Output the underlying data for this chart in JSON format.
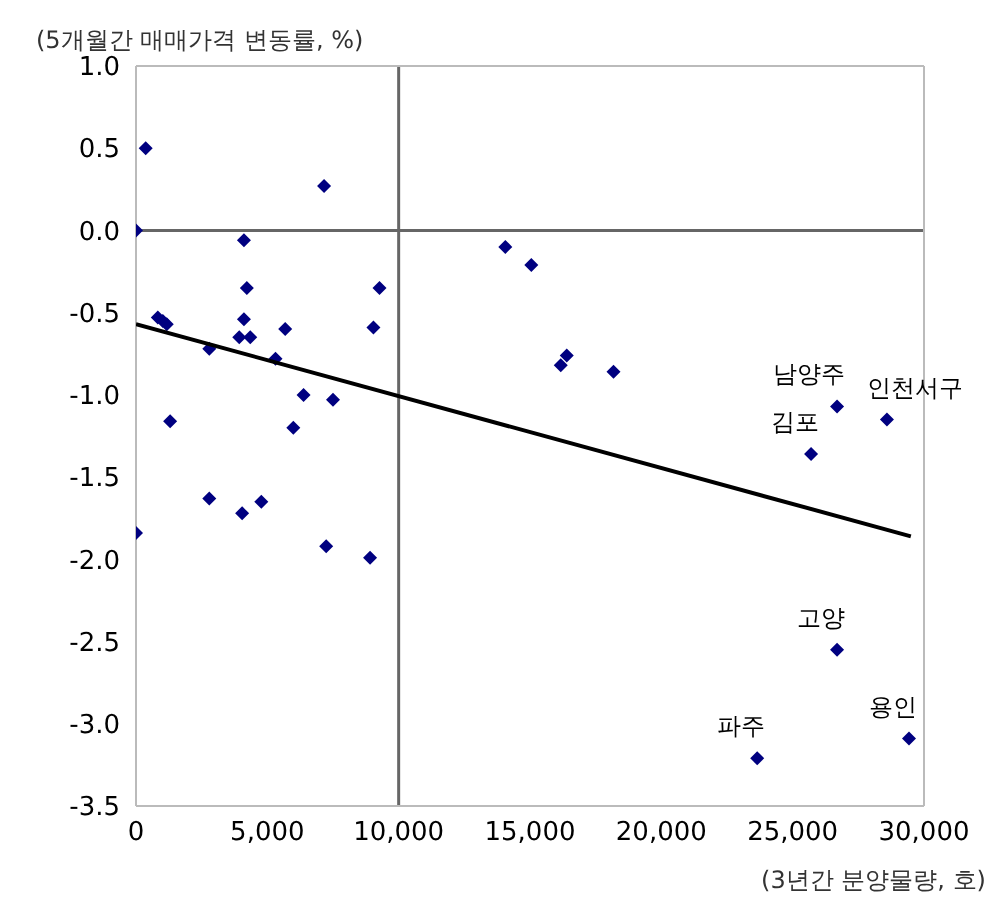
{
  "chart_data": {
    "type": "scatter",
    "ylabel": "(5개월간 매매가격 변동률, %)",
    "xlabel": "(3년간 분양물량, 호)",
    "xlim": [
      0,
      30000
    ],
    "ylim": [
      -3.5,
      1.0
    ],
    "xticks": [
      {
        "value": 0,
        "label": "0"
      },
      {
        "value": 5000,
        "label": "5,000"
      },
      {
        "value": 10000,
        "label": "10,000"
      },
      {
        "value": 15000,
        "label": "15,000"
      },
      {
        "value": 20000,
        "label": "20,000"
      },
      {
        "value": 25000,
        "label": "25,000"
      },
      {
        "value": 30000,
        "label": "30,000"
      }
    ],
    "yticks": [
      {
        "value": 1,
        "label": "1.0"
      },
      {
        "value": 0.5,
        "label": "0.5"
      },
      {
        "value": 0,
        "label": "0.0"
      },
      {
        "value": -0.5,
        "label": "-0.5"
      },
      {
        "value": -1,
        "label": "-1.0"
      },
      {
        "value": -1.5,
        "label": "-1.5"
      },
      {
        "value": -2,
        "label": "-2.0"
      },
      {
        "value": -2.5,
        "label": "-2.5"
      },
      {
        "value": -3,
        "label": "-3.0"
      },
      {
        "value": -3.5,
        "label": "-3.5"
      }
    ],
    "marker": "diamond",
    "series": [
      {
        "color": "#000080",
        "x": [
          370,
          0,
          7160,
          4110,
          4220,
          9270,
          830,
          1020,
          1170,
          4110,
          3930,
          4350,
          5680,
          9040,
          2790,
          5310,
          6380,
          7500,
          1300,
          5990,
          2790,
          4040,
          4770,
          0,
          7240,
          8910,
          14060,
          15050,
          16400,
          16170,
          18180,
          26690,
          28590,
          25700,
          26690,
          29430,
          23650
        ],
        "values": [
          0.5,
          0.0,
          0.27,
          -0.06,
          -0.35,
          -0.35,
          -0.53,
          -0.55,
          -0.57,
          -0.54,
          -0.65,
          -0.65,
          -0.6,
          -0.59,
          -0.72,
          -0.78,
          -1.0,
          -1.03,
          -1.16,
          -1.2,
          -1.63,
          -1.72,
          -1.65,
          -1.84,
          -1.92,
          -1.99,
          -0.1,
          -0.21,
          -0.76,
          -0.82,
          -0.86,
          -1.07,
          -1.15,
          -1.36,
          -2.55,
          -3.09,
          -3.21
        ]
      },
      {
        "type": "line",
        "color": "#000000",
        "line_style": "solid",
        "marker": "none",
        "x": [
          0,
          29500
        ],
        "values": [
          -0.57,
          -1.86
        ]
      }
    ],
    "ref_lines": [
      {
        "axis": "x",
        "value": 10000,
        "color": "#666666"
      },
      {
        "axis": "y",
        "value": 0,
        "color": "#666666"
      }
    ],
    "annotations": [
      {
        "text": "남양주",
        "x": 26690,
        "y": -1.07
      },
      {
        "text": "인천서구",
        "x": 28590,
        "y": -1.15
      },
      {
        "text": "김포",
        "x": 25700,
        "y": -1.36
      },
      {
        "text": "고양",
        "x": 26690,
        "y": -2.55
      },
      {
        "text": "용인",
        "x": 29430,
        "y": -3.09
      },
      {
        "text": "파주",
        "x": 23650,
        "y": -3.21
      }
    ]
  }
}
